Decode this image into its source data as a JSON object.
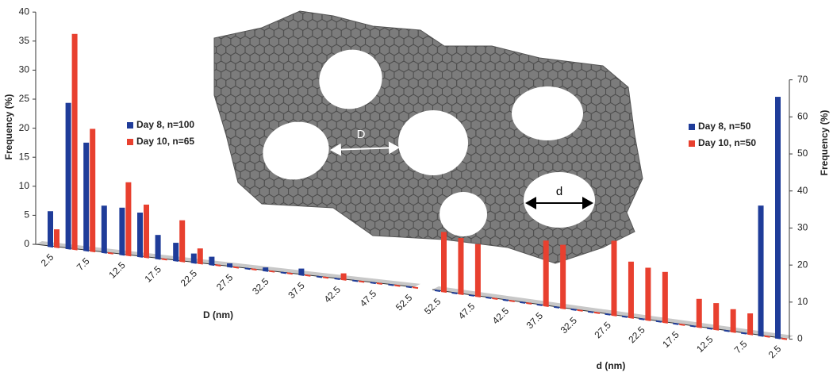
{
  "chart_data": [
    {
      "type": "bar",
      "x_label": "D (nm)",
      "y_label": "Frequency (%)",
      "categories": [
        "2.5",
        null,
        "7.5",
        null,
        "12.5",
        null,
        "17.5",
        null,
        "22.5",
        null,
        "27.5",
        null,
        "32.5",
        null,
        "37.5",
        null,
        "42.5",
        null,
        "47.5",
        null,
        "52.5"
      ],
      "series": [
        {
          "name": "Day 8, n=100",
          "color": "#1f3c99",
          "values": [
            6,
            25,
            18.5,
            8,
            8,
            7.5,
            4,
            3,
            1.5,
            1.3,
            0.5,
            0,
            0.5,
            0,
            1,
            0,
            0,
            0,
            0,
            0,
            0
          ]
        },
        {
          "name": "Day 10, n=65",
          "color": "#e8402f",
          "values": [
            3,
            37,
            21,
            0,
            12.5,
            9,
            0,
            7,
            2.5,
            0,
            0,
            0,
            0,
            0,
            0,
            0,
            1,
            0,
            0,
            0,
            0
          ]
        }
      ],
      "ylim": [
        0,
        40
      ],
      "yticks": [
        0,
        5,
        10,
        15,
        20,
        25,
        30,
        35,
        40
      ],
      "y_axis_side": "left"
    },
    {
      "type": "bar",
      "x_label": "d (nm)",
      "y_label": "Frequency (%)",
      "categories": [
        "52.5",
        null,
        "47.5",
        null,
        "42.5",
        null,
        "37.5",
        null,
        "32.5",
        null,
        "27.5",
        null,
        "22.5",
        null,
        "17.5",
        null,
        "12.5",
        null,
        "7.5",
        null,
        "2.5"
      ],
      "series": [
        {
          "name": "Day 8, n=50",
          "color": "#1f3c99",
          "values": [
            0,
            0,
            0,
            0,
            0,
            0,
            0,
            0,
            0,
            0,
            0,
            0,
            0,
            0,
            0,
            0,
            0,
            0,
            0,
            35,
            65
          ]
        },
        {
          "name": "Day 10, n=50",
          "color": "#e8402f",
          "values": [
            16,
            15,
            14,
            0,
            0,
            0,
            17.5,
            17,
            0,
            0,
            20,
            15,
            14,
            13.5,
            0,
            7.5,
            7,
            6,
            5.5,
            0,
            0
          ]
        }
      ],
      "ylim": [
        0,
        70
      ],
      "yticks": [
        0,
        10,
        20,
        30,
        40,
        50,
        60,
        70
      ],
      "y_axis_side": "right"
    }
  ],
  "diagram": {
    "gap_label": "D",
    "diameter_label": "d"
  }
}
